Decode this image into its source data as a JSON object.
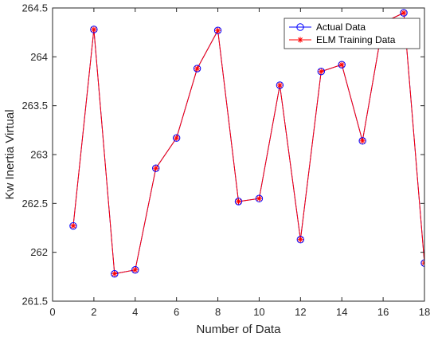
{
  "chart_data": {
    "type": "line",
    "title": "",
    "xlabel": "Number of Data",
    "ylabel": "Kw Inertia Virtual",
    "xlim": [
      0,
      18
    ],
    "ylim": [
      261.5,
      264.5
    ],
    "xticks": [
      0,
      2,
      4,
      6,
      8,
      10,
      12,
      14,
      16,
      18
    ],
    "yticks": [
      261.5,
      262,
      262.5,
      263,
      263.5,
      264,
      264.5
    ],
    "xtick_labels": [
      "0",
      "2",
      "4",
      "6",
      "8",
      "10",
      "12",
      "14",
      "16",
      "18"
    ],
    "ytick_labels": [
      "261.5",
      "262",
      "262.5",
      "263",
      "263.5",
      "264",
      "264.5"
    ],
    "grid": false,
    "legend_position": "top-right",
    "x": [
      1,
      2,
      3,
      4,
      5,
      6,
      7,
      8,
      9,
      10,
      11,
      12,
      13,
      14,
      15,
      16,
      17,
      18
    ],
    "series": [
      {
        "name": "Actual Data",
        "color": "#0000ff",
        "marker": "circle",
        "values": [
          262.27,
          264.28,
          261.78,
          261.82,
          262.86,
          263.17,
          263.88,
          264.27,
          262.52,
          262.55,
          263.71,
          262.13,
          263.85,
          263.92,
          263.14,
          264.35,
          264.45,
          261.89
        ]
      },
      {
        "name": "ELM Training Data",
        "color": "#ff0000",
        "marker": "asterisk",
        "values": [
          262.27,
          264.28,
          261.78,
          261.82,
          262.86,
          263.17,
          263.88,
          264.27,
          262.52,
          262.55,
          263.71,
          262.13,
          263.85,
          263.92,
          263.14,
          264.35,
          264.45,
          261.89
        ]
      }
    ]
  }
}
